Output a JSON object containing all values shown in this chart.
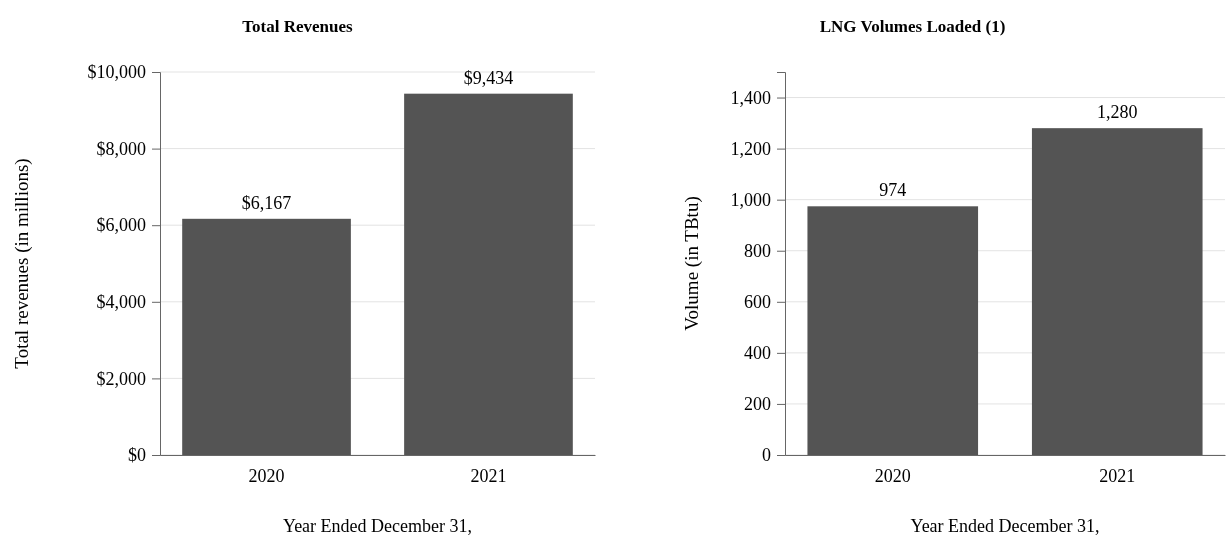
{
  "chart_data": [
    {
      "type": "bar",
      "title": "Total Revenues",
      "ylabel": "Total revenues (in millions)",
      "xlabel": "Year Ended December 31,",
      "categories": [
        "2020",
        "2021"
      ],
      "values": [
        6167,
        9434
      ],
      "value_labels": [
        "$6,167",
        "$9,434"
      ],
      "color": "#545454",
      "ylim": [
        0,
        10000
      ],
      "yticks": [
        {
          "value": 0,
          "label": "$0"
        },
        {
          "value": 2000,
          "label": "$2,000"
        },
        {
          "value": 4000,
          "label": "$4,000"
        },
        {
          "value": 6000,
          "label": "$6,000"
        },
        {
          "value": 8000,
          "label": "$8,000"
        },
        {
          "value": 10000,
          "label": "$10,000"
        }
      ],
      "grid": "y"
    },
    {
      "type": "bar",
      "title": "LNG Volumes Loaded (1)",
      "ylabel": "Volume (in TBtu)",
      "xlabel": "Year Ended December 31,",
      "categories": [
        "2020",
        "2021"
      ],
      "values": [
        974,
        1280
      ],
      "value_labels": [
        "974",
        "1,280"
      ],
      "color": "#545454",
      "ylim": [
        0,
        1500
      ],
      "yticks": [
        0,
        200,
        400,
        600,
        800,
        {
          "value": 1000,
          "label": "1,000"
        },
        {
          "value": 1200,
          "label": "1,200"
        },
        {
          "value": 1400,
          "label": "1,400"
        }
      ],
      "grid": "y"
    }
  ]
}
